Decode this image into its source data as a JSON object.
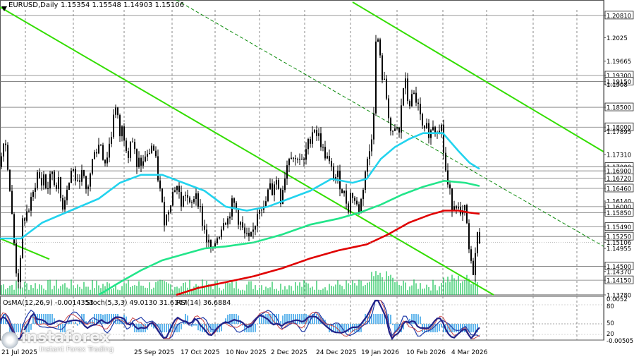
{
  "header": {
    "symbol": "EURUSD,Daily",
    "ohlc": "1.15354 1.15548 1.14903 1.15106"
  },
  "indicators": {
    "osma": "OsMA(12,26,9) -0.0014353",
    "stoch": "Stoch(5,3,3) 49.0130 31.6147",
    "rsi": "RSI(14) 36.6884"
  },
  "logo": {
    "name": "instaforex",
    "tagline": "Instant Forex Trading"
  },
  "colors": {
    "background": "#ffffff",
    "grid": "#8a8a8a",
    "candle": "#000000",
    "ma_fast": "#22d3ee",
    "ma_mid": "#22e58a",
    "ma_slow": "#e00000",
    "trend": "#33dd00",
    "trend_dashed": "#0a8a0a",
    "volume": "#22c55e",
    "osma_hist": "#3ba3e8",
    "stoch_main": "#1e3aa8",
    "stoch_signal": "#c83a3a",
    "rsi": "#222288",
    "price_box": "#ffffff",
    "current_box": "#000000"
  },
  "chart_data": {
    "type": "candlestick",
    "symbol": "EURUSD",
    "timeframe": "Daily",
    "ylim": [
      1.1378,
      1.2095
    ],
    "y_ticks": [
      1.2081,
      1.2025,
      1.1966,
      1.193,
      1.1915,
      1.1908,
      1.185,
      1.18,
      1.1789,
      1.1731,
      1.17,
      1.169,
      1.1672,
      1.1646,
      1.1614,
      1.16,
      1.1585,
      1.1549,
      1.1525,
      1.151,
      1.1495,
      1.145,
      1.1437,
      1.1415,
      1.1378
    ],
    "y_tick_labels": [
      "1.20810",
      "1.2025",
      "1.19665",
      "1.19300",
      "1.19150",
      "1.1908",
      "1.18500",
      "1.18000",
      "1.17895",
      "1.17310",
      "1.17000",
      "1.16900",
      "1.16720",
      "1.16460",
      "1.16140",
      "1.16000",
      "1.15850",
      "1.15490",
      "1.15250",
      "1.15106",
      "1.14955",
      "1.14500",
      "1.14370",
      "1.14150",
      "1.13780"
    ],
    "highlighted_levels": [
      1.2081,
      1.193,
      1.1915,
      1.185,
      1.18,
      1.17,
      1.169,
      1.1672,
      1.1646,
      1.16,
      1.1585,
      1.1549,
      1.1525,
      1.145,
      1.1415
    ],
    "current_price": 1.15106,
    "x_tick_labels": [
      "21 Jul 2025",
      "25 Sep 2025",
      "17 Oct 2025",
      "10 Nov 2025",
      "2 Dec 2025",
      "24 Dec 2025",
      "19 Jan 2026",
      "10 Feb 2026",
      "4 Mar 2026"
    ],
    "close_path": [
      [
        0,
        1.17
      ],
      [
        6,
        1.179
      ],
      [
        12,
        1.169
      ],
      [
        18,
        1.155
      ],
      [
        24,
        1.142
      ],
      [
        28,
        1.142
      ],
      [
        32,
        1.156
      ],
      [
        36,
        1.158
      ],
      [
        40,
        1.159
      ],
      [
        46,
        1.162
      ],
      [
        50,
        1.166
      ],
      [
        54,
        1.169
      ],
      [
        58,
        1.165
      ],
      [
        62,
        1.168
      ],
      [
        66,
        1.164
      ],
      [
        70,
        1.166
      ],
      [
        74,
        1.169
      ],
      [
        78,
        1.165
      ],
      [
        82,
        1.167
      ],
      [
        86,
        1.162
      ],
      [
        90,
        1.16
      ],
      [
        94,
        1.165
      ],
      [
        98,
        1.166
      ],
      [
        102,
        1.17
      ],
      [
        106,
        1.168
      ],
      [
        110,
        1.165
      ],
      [
        114,
        1.169
      ],
      [
        118,
        1.167
      ],
      [
        122,
        1.164
      ],
      [
        126,
        1.166
      ],
      [
        130,
        1.17
      ],
      [
        134,
        1.175
      ],
      [
        138,
        1.174
      ],
      [
        142,
        1.177
      ],
      [
        146,
        1.173
      ],
      [
        150,
        1.171
      ],
      [
        154,
        1.175
      ],
      [
        158,
        1.178
      ],
      [
        162,
        1.186
      ],
      [
        166,
        1.183
      ],
      [
        170,
        1.178
      ],
      [
        174,
        1.18
      ],
      [
        178,
        1.176
      ],
      [
        182,
        1.174
      ],
      [
        186,
        1.178
      ],
      [
        190,
        1.175
      ],
      [
        194,
        1.169
      ],
      [
        198,
        1.172
      ],
      [
        202,
        1.17
      ],
      [
        206,
        1.173
      ],
      [
        210,
        1.172
      ],
      [
        214,
        1.176
      ],
      [
        218,
        1.174
      ],
      [
        222,
        1.17
      ],
      [
        226,
        1.165
      ],
      [
        230,
        1.16
      ],
      [
        234,
        1.156
      ],
      [
        238,
        1.159
      ],
      [
        242,
        1.162
      ],
      [
        246,
        1.164
      ],
      [
        250,
        1.166
      ],
      [
        254,
        1.163
      ],
      [
        258,
        1.16
      ],
      [
        262,
        1.164
      ],
      [
        266,
        1.162
      ],
      [
        270,
        1.159
      ],
      [
        274,
        1.162
      ],
      [
        278,
        1.164
      ],
      [
        282,
        1.161
      ],
      [
        286,
        1.157
      ],
      [
        290,
        1.154
      ],
      [
        294,
        1.151
      ],
      [
        298,
        1.15
      ],
      [
        302,
        1.148
      ],
      [
        306,
        1.152
      ],
      [
        310,
        1.153
      ],
      [
        314,
        1.155
      ],
      [
        318,
        1.158
      ],
      [
        322,
        1.156
      ],
      [
        326,
        1.159
      ],
      [
        330,
        1.161
      ],
      [
        334,
        1.16
      ],
      [
        338,
        1.157
      ],
      [
        342,
        1.155
      ],
      [
        346,
        1.153
      ],
      [
        350,
        1.152
      ],
      [
        354,
        1.151
      ],
      [
        358,
        1.153
      ],
      [
        362,
        1.156
      ],
      [
        366,
        1.16
      ],
      [
        370,
        1.161
      ],
      [
        374,
        1.159
      ],
      [
        378,
        1.162
      ],
      [
        382,
        1.165
      ],
      [
        386,
        1.164
      ],
      [
        390,
        1.167
      ],
      [
        394,
        1.166
      ],
      [
        398,
        1.162
      ],
      [
        402,
        1.166
      ],
      [
        406,
        1.17
      ],
      [
        410,
        1.173
      ],
      [
        414,
        1.174
      ],
      [
        418,
        1.171
      ],
      [
        422,
        1.173
      ],
      [
        426,
        1.172
      ],
      [
        430,
        1.17
      ],
      [
        434,
        1.174
      ],
      [
        438,
        1.176
      ],
      [
        442,
        1.179
      ],
      [
        446,
        1.18
      ],
      [
        450,
        1.178
      ],
      [
        454,
        1.177
      ],
      [
        458,
        1.174
      ],
      [
        462,
        1.173
      ],
      [
        466,
        1.171
      ],
      [
        470,
        1.169
      ],
      [
        474,
        1.167
      ],
      [
        478,
        1.168
      ],
      [
        482,
        1.166
      ],
      [
        486,
        1.164
      ],
      [
        490,
        1.162
      ],
      [
        494,
        1.16
      ],
      [
        498,
        1.164
      ],
      [
        502,
        1.162
      ],
      [
        506,
        1.16
      ],
      [
        510,
        1.159
      ],
      [
        514,
        1.164
      ],
      [
        518,
        1.169
      ],
      [
        522,
        1.172
      ],
      [
        526,
        1.176
      ],
      [
        530,
        1.185
      ],
      [
        534,
        1.206
      ],
      [
        538,
        1.198
      ],
      [
        542,
        1.193
      ],
      [
        546,
        1.19
      ],
      [
        550,
        1.185
      ],
      [
        554,
        1.179
      ],
      [
        558,
        1.177
      ],
      [
        562,
        1.18
      ],
      [
        566,
        1.178
      ],
      [
        570,
        1.188
      ],
      [
        574,
        1.192
      ],
      [
        578,
        1.187
      ],
      [
        582,
        1.186
      ],
      [
        586,
        1.188
      ],
      [
        590,
        1.187
      ],
      [
        594,
        1.184
      ],
      [
        598,
        1.18
      ],
      [
        602,
        1.178
      ],
      [
        606,
        1.18
      ],
      [
        610,
        1.178
      ],
      [
        614,
        1.181
      ],
      [
        618,
        1.179
      ],
      [
        622,
        1.181
      ],
      [
        626,
        1.18
      ],
      [
        630,
        1.172
      ],
      [
        634,
        1.166
      ],
      [
        638,
        1.163
      ],
      [
        642,
        1.16
      ],
      [
        646,
        1.162
      ],
      [
        650,
        1.159
      ],
      [
        654,
        1.156
      ],
      [
        658,
        1.16
      ],
      [
        662,
        1.155
      ],
      [
        666,
        1.147
      ],
      [
        670,
        1.143
      ],
      [
        674,
        1.148
      ],
      [
        678,
        1.154
      ],
      [
        681,
        1.151
      ]
    ],
    "series": [
      {
        "name": "MA fast",
        "color": "#22d3ee",
        "points": [
          [
            0,
            1.152
          ],
          [
            30,
            1.152
          ],
          [
            60,
            1.156
          ],
          [
            100,
            1.159
          ],
          [
            140,
            1.162
          ],
          [
            170,
            1.166
          ],
          [
            200,
            1.168
          ],
          [
            230,
            1.168
          ],
          [
            260,
            1.166
          ],
          [
            290,
            1.164
          ],
          [
            320,
            1.16
          ],
          [
            350,
            1.159
          ],
          [
            380,
            1.16
          ],
          [
            410,
            1.162
          ],
          [
            440,
            1.164
          ],
          [
            470,
            1.167
          ],
          [
            500,
            1.166
          ],
          [
            520,
            1.167
          ],
          [
            540,
            1.172
          ],
          [
            560,
            1.175
          ],
          [
            580,
            1.177
          ],
          [
            600,
            1.1785
          ],
          [
            628,
            1.1785
          ],
          [
            650,
            1.174
          ],
          [
            666,
            1.171
          ],
          [
            680,
            1.1695
          ]
        ]
      },
      {
        "name": "MA mid",
        "color": "#22e58a",
        "points": [
          [
            140,
            1.1378
          ],
          [
            170,
            1.141
          ],
          [
            200,
            1.144
          ],
          [
            230,
            1.1465
          ],
          [
            260,
            1.148
          ],
          [
            290,
            1.1495
          ],
          [
            320,
            1.15
          ],
          [
            360,
            1.151
          ],
          [
            400,
            1.153
          ],
          [
            440,
            1.1555
          ],
          [
            480,
            1.157
          ],
          [
            510,
            1.1585
          ],
          [
            540,
            1.1605
          ],
          [
            570,
            1.163
          ],
          [
            600,
            1.165
          ],
          [
            630,
            1.1665
          ],
          [
            660,
            1.166
          ],
          [
            680,
            1.1652
          ]
        ]
      },
      {
        "name": "MA slow",
        "color": "#e00000",
        "points": [
          [
            250,
            1.1378
          ],
          [
            280,
            1.1395
          ],
          [
            320,
            1.141
          ],
          [
            360,
            1.1425
          ],
          [
            400,
            1.1445
          ],
          [
            440,
            1.147
          ],
          [
            480,
            1.149
          ],
          [
            520,
            1.1505
          ],
          [
            550,
            1.153
          ],
          [
            580,
            1.156
          ],
          [
            610,
            1.158
          ],
          [
            630,
            1.159
          ],
          [
            650,
            1.159
          ],
          [
            666,
            1.1585
          ],
          [
            680,
            1.1582
          ]
        ]
      }
    ],
    "indicator_panel": {
      "osma_value": -0.0014353,
      "stoch_main": 49.013,
      "stoch_signal": 31.6147,
      "rsi": 36.6884,
      "right_axis_labels": [
        "0.0052",
        "80",
        "50",
        "20",
        "-0.00505"
      ]
    },
    "grid": true
  }
}
